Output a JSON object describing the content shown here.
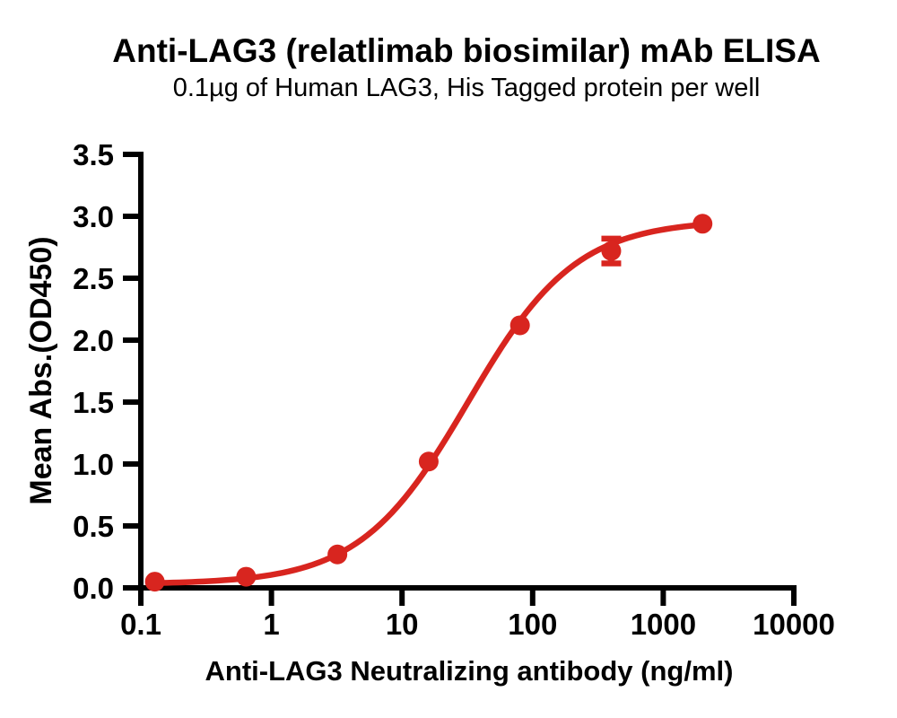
{
  "header": {
    "title": "Anti-LAG3 (relatlimab biosimilar) mAb ELISA",
    "subtitle": "0.1µg of Human LAG3, His Tagged protein per well"
  },
  "colors": {
    "series_red": "#d8251f",
    "axis_black": "#000000",
    "background": "#ffffff"
  },
  "chart_data": {
    "type": "scatter",
    "title": "Anti-LAG3 (relatlimab biosimilar) mAb ELISA",
    "subtitle": "0.1µg of Human LAG3, His Tagged protein per well",
    "xlabel": "Anti-LAG3 Neutralizing antibody (ng/ml)",
    "ylabel": "Mean Abs.(OD450)",
    "x_scale": "log10",
    "xlim": [
      0.1,
      10000
    ],
    "ylim": [
      0,
      3.5
    ],
    "grid": false,
    "legend": "none",
    "x_ticks": [
      0.1,
      1,
      10,
      100,
      1000,
      10000
    ],
    "x_tick_labels": [
      "0.1",
      "1",
      "10",
      "100",
      "1000",
      "10000"
    ],
    "y_ticks": [
      0,
      0.5,
      1,
      1.5,
      2,
      2.5,
      3,
      3.5
    ],
    "y_tick_labels": [
      "0.0",
      "0.5",
      "1.0",
      "1.5",
      "2.0",
      "2.5",
      "3.0",
      "3.5"
    ],
    "series": [
      {
        "name": "Anti-LAG3 neutralizing antibody",
        "color": "#d8251f",
        "marker": "circle",
        "points": [
          {
            "x": 0.128,
            "y": 0.05,
            "err": 0
          },
          {
            "x": 0.64,
            "y": 0.09,
            "err": 0
          },
          {
            "x": 3.2,
            "y": 0.27,
            "err": 0
          },
          {
            "x": 16,
            "y": 1.02,
            "err": 0
          },
          {
            "x": 80,
            "y": 2.12,
            "err": 0
          },
          {
            "x": 400,
            "y": 2.72,
            "err": 0.1
          },
          {
            "x": 2000,
            "y": 2.94,
            "err": 0
          }
        ],
        "fit": {
          "type": "4PL",
          "bottom": 0.03,
          "top": 2.97,
          "ec50": 32,
          "hill": 1.05
        }
      }
    ]
  }
}
